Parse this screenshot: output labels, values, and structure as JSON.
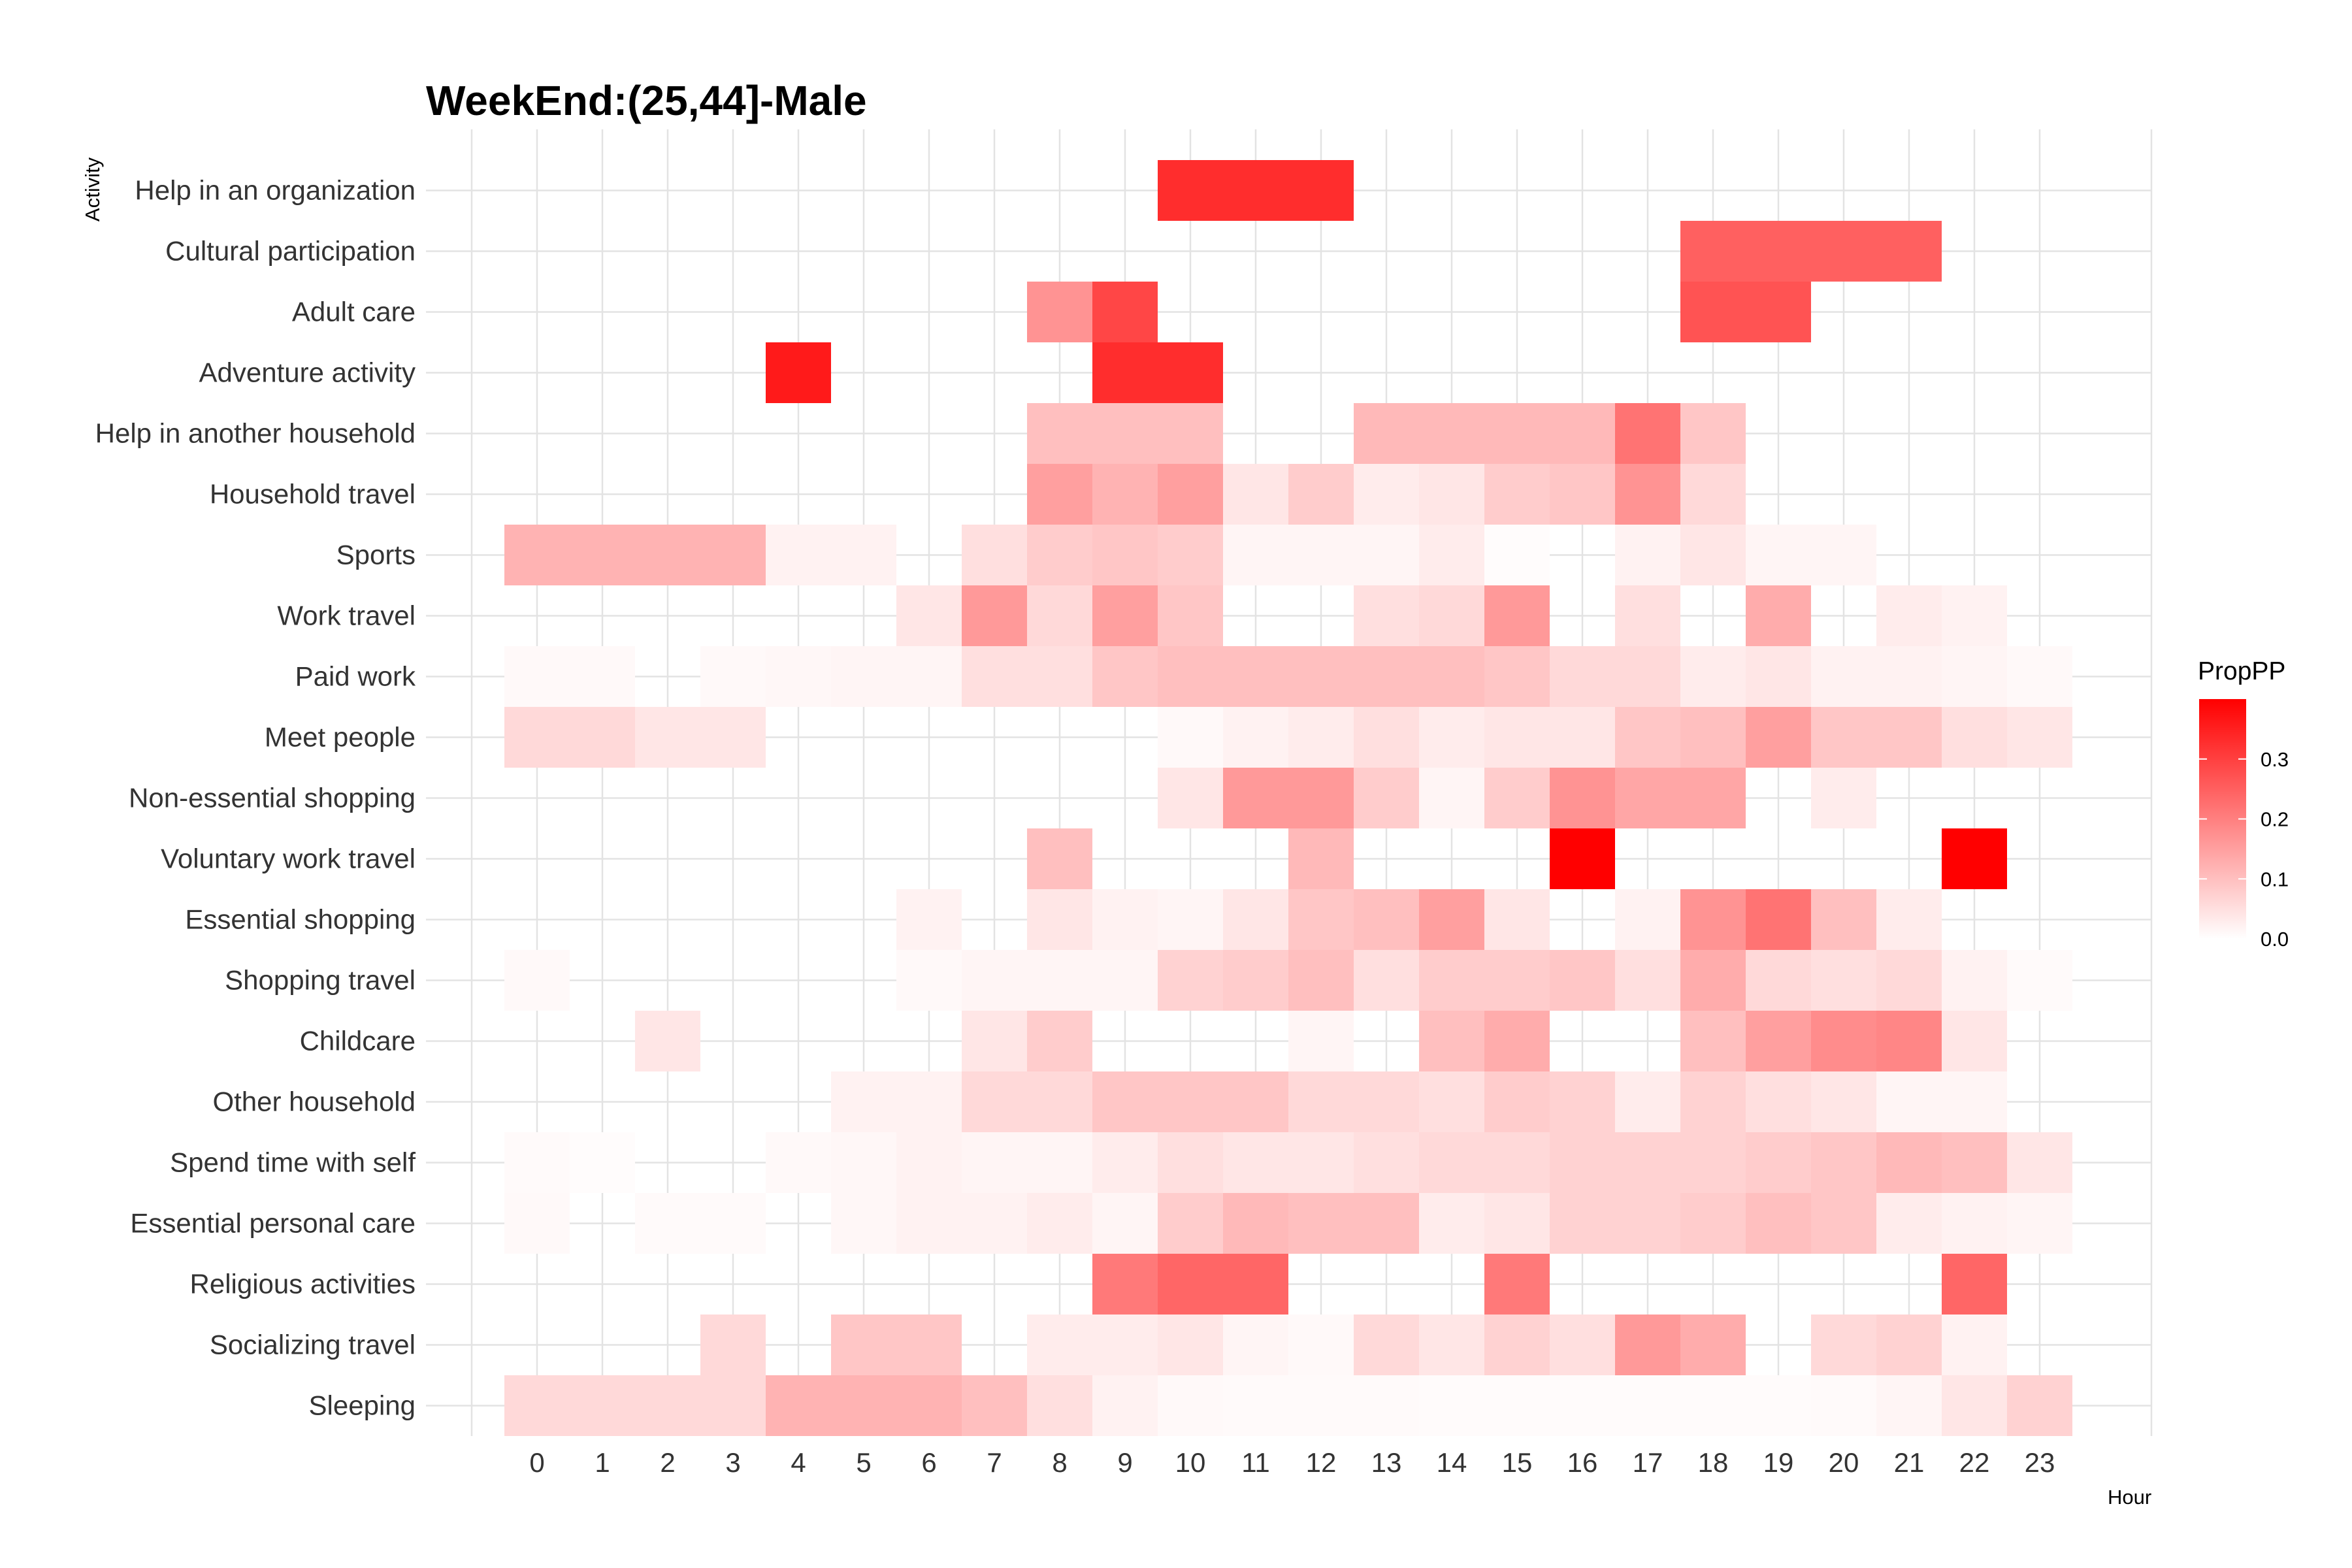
{
  "chart_data": {
    "type": "heatmap",
    "title": "WeekEnd:(25,44]-Male",
    "xlabel": "Hour",
    "ylabel": "Activity",
    "legend": {
      "title": "PropPP",
      "ticks": [
        0.0,
        0.1,
        0.2,
        0.3
      ],
      "tick_labels": [
        "0.0",
        "0.1",
        "0.2",
        "0.3"
      ],
      "range": [
        0,
        0.4
      ],
      "low_color": "#ffffff",
      "high_color": "#ff0000",
      "placement": "right"
    },
    "hours": [
      "0",
      "1",
      "2",
      "3",
      "4",
      "5",
      "6",
      "7",
      "8",
      "9",
      "10",
      "11",
      "12",
      "13",
      "14",
      "15",
      "16",
      "17",
      "18",
      "19",
      "20",
      "21",
      "22",
      "23"
    ],
    "activities": [
      "Help in an organization",
      "Cultural participation",
      "Adult care",
      "Adventure activity",
      "Help in another household",
      "Household travel",
      "Sports",
      "Work travel",
      "Paid work",
      "Meet people",
      "Non-essential shopping",
      "Voluntary work travel",
      "Essential shopping",
      "Shopping travel",
      "Childcare",
      "Other household",
      "Spend time with self",
      "Essential personal care",
      "Religious activities",
      "Socializing travel",
      "Sleeping"
    ],
    "values": [
      [
        null,
        null,
        null,
        null,
        null,
        null,
        null,
        null,
        null,
        null,
        0.33,
        0.33,
        0.33,
        null,
        null,
        null,
        null,
        null,
        null,
        null,
        null,
        null,
        null,
        null
      ],
      [
        null,
        null,
        null,
        null,
        null,
        null,
        null,
        null,
        null,
        null,
        null,
        null,
        null,
        null,
        null,
        null,
        null,
        null,
        0.25,
        0.25,
        0.25,
        0.25,
        null,
        null
      ],
      [
        null,
        null,
        null,
        null,
        null,
        null,
        null,
        null,
        0.17,
        0.29,
        null,
        null,
        null,
        null,
        null,
        null,
        null,
        null,
        0.27,
        0.27,
        null,
        null,
        null,
        null
      ],
      [
        null,
        null,
        null,
        null,
        0.36,
        null,
        null,
        null,
        null,
        0.33,
        0.33,
        null,
        null,
        null,
        null,
        null,
        null,
        null,
        null,
        null,
        null,
        null,
        null,
        null
      ],
      [
        null,
        null,
        null,
        null,
        null,
        null,
        null,
        null,
        0.1,
        0.1,
        0.1,
        null,
        null,
        0.11,
        0.11,
        0.11,
        0.11,
        0.22,
        0.09,
        null,
        null,
        null,
        null,
        null
      ],
      [
        null,
        null,
        null,
        null,
        null,
        null,
        null,
        null,
        0.15,
        0.12,
        0.15,
        0.04,
        0.08,
        0.03,
        0.04,
        0.08,
        0.09,
        0.17,
        0.06,
        null,
        null,
        null,
        null,
        null
      ],
      [
        0.12,
        0.12,
        0.12,
        0.12,
        0.02,
        0.02,
        null,
        0.05,
        0.08,
        0.09,
        0.08,
        0.015,
        0.015,
        0.015,
        0.03,
        0.005,
        null,
        0.02,
        0.04,
        0.015,
        0.015,
        null,
        null,
        null
      ],
      [
        null,
        null,
        null,
        null,
        null,
        null,
        0.04,
        0.16,
        0.06,
        0.15,
        0.09,
        null,
        null,
        0.05,
        0.06,
        0.16,
        null,
        0.05,
        null,
        0.13,
        null,
        0.03,
        0.02,
        null
      ],
      [
        0.01,
        0.01,
        null,
        0.01,
        0.012,
        0.015,
        0.015,
        0.05,
        0.05,
        0.09,
        0.1,
        0.1,
        0.1,
        0.1,
        0.1,
        0.09,
        0.06,
        0.06,
        0.03,
        0.04,
        0.02,
        0.02,
        0.015,
        0.01
      ],
      [
        0.06,
        0.06,
        0.04,
        0.04,
        null,
        null,
        null,
        null,
        null,
        null,
        0.01,
        0.02,
        0.03,
        0.05,
        0.03,
        0.04,
        0.04,
        0.09,
        0.1,
        0.15,
        0.09,
        0.09,
        0.05,
        0.04
      ],
      [
        null,
        null,
        null,
        null,
        null,
        null,
        null,
        null,
        null,
        null,
        0.04,
        0.16,
        0.16,
        0.08,
        0.015,
        0.08,
        0.17,
        0.14,
        0.14,
        null,
        0.03,
        null,
        null,
        null
      ],
      [
        null,
        null,
        null,
        null,
        null,
        null,
        null,
        null,
        0.1,
        null,
        null,
        null,
        0.11,
        null,
        null,
        null,
        0.4,
        null,
        null,
        null,
        null,
        null,
        0.4,
        null
      ],
      [
        null,
        null,
        null,
        null,
        null,
        null,
        0.02,
        null,
        0.04,
        0.02,
        0.015,
        0.04,
        0.09,
        0.1,
        0.15,
        0.04,
        null,
        0.02,
        0.17,
        0.22,
        0.1,
        0.03,
        null,
        null
      ],
      [
        0.01,
        null,
        null,
        null,
        null,
        null,
        0.01,
        0.015,
        0.015,
        0.015,
        0.07,
        0.08,
        0.1,
        0.05,
        0.08,
        0.08,
        0.09,
        0.05,
        0.13,
        0.06,
        0.05,
        0.06,
        0.02,
        0.008
      ],
      [
        null,
        null,
        0.04,
        null,
        null,
        null,
        null,
        0.04,
        0.08,
        null,
        null,
        null,
        0.015,
        null,
        0.1,
        0.13,
        null,
        null,
        0.1,
        0.15,
        0.18,
        0.19,
        0.04,
        null
      ],
      [
        null,
        null,
        null,
        null,
        null,
        0.02,
        0.02,
        0.06,
        0.06,
        0.09,
        0.09,
        0.09,
        0.06,
        0.06,
        0.05,
        0.08,
        0.07,
        0.03,
        0.07,
        0.05,
        0.04,
        0.015,
        0.015,
        null
      ],
      [
        0.008,
        0.005,
        null,
        null,
        0.01,
        0.012,
        0.02,
        0.015,
        0.015,
        0.03,
        0.05,
        0.04,
        0.04,
        0.05,
        0.06,
        0.06,
        0.07,
        0.07,
        0.07,
        0.08,
        0.09,
        0.11,
        0.1,
        0.04
      ],
      [
        0.01,
        null,
        0.008,
        0.008,
        null,
        0.012,
        0.02,
        0.02,
        0.03,
        0.015,
        0.08,
        0.11,
        0.1,
        0.1,
        0.03,
        0.04,
        0.07,
        0.07,
        0.08,
        0.1,
        0.09,
        0.03,
        0.02,
        0.015
      ],
      [
        null,
        null,
        null,
        null,
        null,
        null,
        null,
        null,
        null,
        0.21,
        0.24,
        0.24,
        null,
        null,
        null,
        0.21,
        null,
        null,
        null,
        null,
        null,
        null,
        0.24,
        null
      ],
      [
        null,
        null,
        null,
        0.06,
        null,
        0.09,
        0.09,
        null,
        0.03,
        0.03,
        0.04,
        0.015,
        0.01,
        0.06,
        0.04,
        0.07,
        0.05,
        0.16,
        0.13,
        null,
        0.06,
        0.07,
        0.02,
        null
      ],
      [
        0.06,
        0.06,
        0.06,
        0.06,
        0.12,
        0.12,
        0.12,
        0.1,
        0.05,
        0.02,
        0.01,
        0.008,
        0.008,
        0.008,
        0.006,
        0.006,
        0.006,
        0.006,
        0.006,
        0.006,
        0.008,
        0.015,
        0.04,
        0.07
      ]
    ]
  }
}
